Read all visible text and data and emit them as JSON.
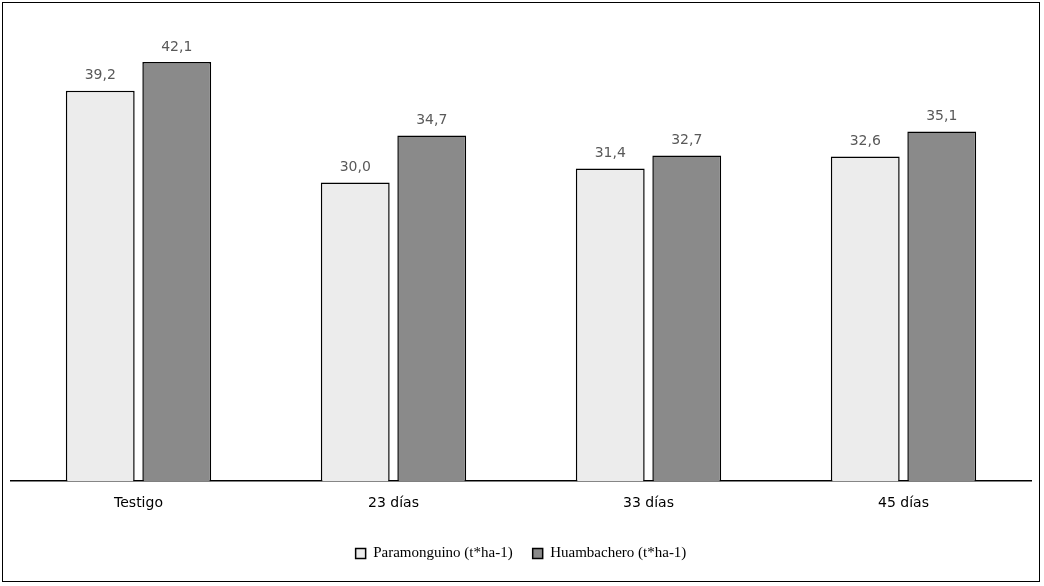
{
  "chart_data": {
    "type": "bar",
    "categories": [
      "Testigo",
      "23 días",
      "33 días",
      "45 días"
    ],
    "series": [
      {
        "name": "Paramonguino (t*ha-1)",
        "color": "#ececec",
        "values": [
          39.2,
          30.0,
          31.4,
          32.6
        ],
        "value_labels": [
          "39,2",
          "30,0",
          "31,4",
          "32,6"
        ]
      },
      {
        "name": "Huambachero (t*ha-1)",
        "color": "#8a8a8a",
        "values": [
          42.1,
          34.7,
          32.7,
          35.1
        ],
        "value_labels": [
          "42,1",
          "34,7",
          "32,7",
          "35,1"
        ]
      }
    ],
    "tick_labels": "x",
    "grid": false,
    "legend": "bottom"
  }
}
